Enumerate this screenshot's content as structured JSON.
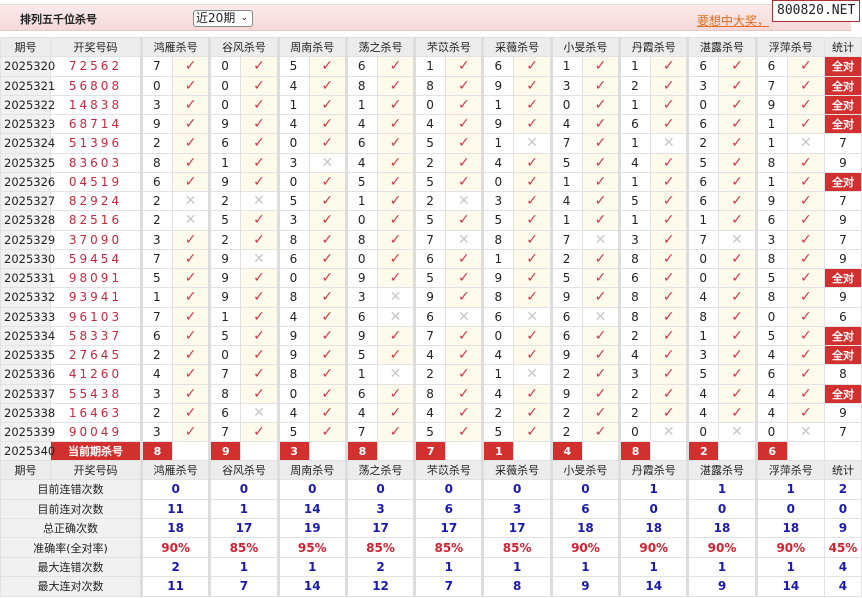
{
  "header": {
    "title": "排列五千位杀号",
    "period_select": "近20期",
    "promo": "要想中大奖，",
    "watermark": "800820.NET"
  },
  "columns": {
    "issue": "期号",
    "draw": "开奖号码",
    "predictors": [
      "鸿雁杀号",
      "谷风杀号",
      "周南杀号",
      "荡之杀号",
      "芣苡杀号",
      "采薇杀号",
      "小旻杀号",
      "丹霞杀号",
      "湛露杀号",
      "浮萍杀号"
    ],
    "stat": "统计"
  },
  "marks": {
    "right": "✓",
    "wrong": "✕"
  },
  "rows": [
    {
      "issue": "2025320",
      "draw": "72562",
      "kills": [
        7,
        0,
        5,
        6,
        1,
        6,
        1,
        1,
        6,
        6
      ],
      "stat": "全对"
    },
    {
      "issue": "2025321",
      "draw": "56808",
      "kills": [
        0,
        0,
        4,
        8,
        8,
        9,
        3,
        2,
        3,
        7
      ],
      "stat": "全对"
    },
    {
      "issue": "2025322",
      "draw": "14838",
      "kills": [
        3,
        0,
        1,
        1,
        0,
        1,
        0,
        1,
        0,
        9
      ],
      "stat": "全对"
    },
    {
      "issue": "2025323",
      "draw": "68714",
      "kills": [
        9,
        9,
        4,
        4,
        4,
        9,
        4,
        6,
        6,
        1
      ],
      "stat": "全对"
    },
    {
      "issue": "2025324",
      "draw": "51396",
      "kills": [
        2,
        6,
        0,
        6,
        5,
        1,
        7,
        1,
        2,
        1
      ],
      "stat": "7"
    },
    {
      "issue": "2025325",
      "draw": "83603",
      "kills": [
        8,
        1,
        3,
        4,
        2,
        4,
        5,
        4,
        5,
        8
      ],
      "stat": "9"
    },
    {
      "issue": "2025326",
      "draw": "04519",
      "kills": [
        6,
        9,
        0,
        5,
        5,
        0,
        1,
        1,
        6,
        1
      ],
      "stat": "全对"
    },
    {
      "issue": "2025327",
      "draw": "82924",
      "kills": [
        2,
        2,
        5,
        1,
        2,
        3,
        4,
        5,
        6,
        9
      ],
      "stat": "7"
    },
    {
      "issue": "2025328",
      "draw": "82516",
      "kills": [
        2,
        5,
        3,
        0,
        5,
        5,
        1,
        1,
        1,
        6
      ],
      "stat": "9"
    },
    {
      "issue": "2025329",
      "draw": "37090",
      "kills": [
        3,
        2,
        8,
        8,
        7,
        8,
        7,
        3,
        7,
        3
      ],
      "stat": "7"
    },
    {
      "issue": "2025330",
      "draw": "59454",
      "kills": [
        7,
        9,
        6,
        0,
        6,
        1,
        2,
        8,
        0,
        8
      ],
      "stat": "9"
    },
    {
      "issue": "2025331",
      "draw": "98091",
      "kills": [
        5,
        9,
        0,
        9,
        5,
        9,
        5,
        6,
        0,
        5
      ],
      "stat": "全对"
    },
    {
      "issue": "2025332",
      "draw": "93941",
      "kills": [
        1,
        9,
        8,
        3,
        9,
        8,
        9,
        8,
        4,
        8
      ],
      "stat": "9"
    },
    {
      "issue": "2025333",
      "draw": "96103",
      "kills": [
        7,
        1,
        4,
        6,
        6,
        6,
        6,
        8,
        8,
        0
      ],
      "stat": "6"
    },
    {
      "issue": "2025334",
      "draw": "58337",
      "kills": [
        6,
        5,
        9,
        9,
        7,
        0,
        6,
        2,
        1,
        5
      ],
      "stat": "全对"
    },
    {
      "issue": "2025335",
      "draw": "27645",
      "kills": [
        2,
        0,
        9,
        5,
        4,
        4,
        9,
        4,
        3,
        4
      ],
      "stat": "全对"
    },
    {
      "issue": "2025336",
      "draw": "41260",
      "kills": [
        4,
        7,
        8,
        1,
        2,
        1,
        2,
        3,
        5,
        6
      ],
      "stat": "8"
    },
    {
      "issue": "2025337",
      "draw": "55438",
      "kills": [
        3,
        8,
        0,
        6,
        8,
        4,
        9,
        2,
        4,
        4
      ],
      "stat": "全对"
    },
    {
      "issue": "2025338",
      "draw": "16463",
      "kills": [
        2,
        6,
        4,
        4,
        4,
        2,
        2,
        2,
        4,
        4
      ],
      "stat": "9"
    },
    {
      "issue": "2025339",
      "draw": "90049",
      "kills": [
        3,
        7,
        5,
        7,
        5,
        5,
        2,
        0,
        0,
        0
      ],
      "stat": "7"
    }
  ],
  "current": {
    "issue": "2025340",
    "label": "当前期杀号",
    "kills": [
      8,
      9,
      3,
      8,
      7,
      1,
      4,
      8,
      2,
      6
    ]
  },
  "stats": [
    {
      "label": "目前连错次数",
      "values": [
        "0",
        "0",
        "0",
        "0",
        "0",
        "0",
        "0",
        "1",
        "1",
        "1",
        "2"
      ]
    },
    {
      "label": "目前连对次数",
      "values": [
        "11",
        "1",
        "14",
        "3",
        "6",
        "3",
        "6",
        "0",
        "0",
        "0",
        "0"
      ]
    },
    {
      "label": "总正确次数",
      "values": [
        "18",
        "17",
        "19",
        "17",
        "17",
        "17",
        "18",
        "18",
        "18",
        "18",
        "9"
      ]
    },
    {
      "label": "准确率(全对率)",
      "values": [
        "90%",
        "85%",
        "95%",
        "85%",
        "85%",
        "85%",
        "90%",
        "90%",
        "90%",
        "90%",
        "45%"
      ],
      "rate": true
    },
    {
      "label": "最大连错次数",
      "values": [
        "2",
        "1",
        "1",
        "2",
        "1",
        "1",
        "1",
        "1",
        "1",
        "1",
        "4"
      ]
    },
    {
      "label": "最大连对次数",
      "values": [
        "11",
        "7",
        "14",
        "12",
        "7",
        "8",
        "9",
        "14",
        "9",
        "14",
        "4"
      ]
    }
  ],
  "colors": {
    "accent": "#d22f2f",
    "draw_digits": "#c8283c",
    "stat_values": "#1a1ab0",
    "rate": "#d42030"
  }
}
